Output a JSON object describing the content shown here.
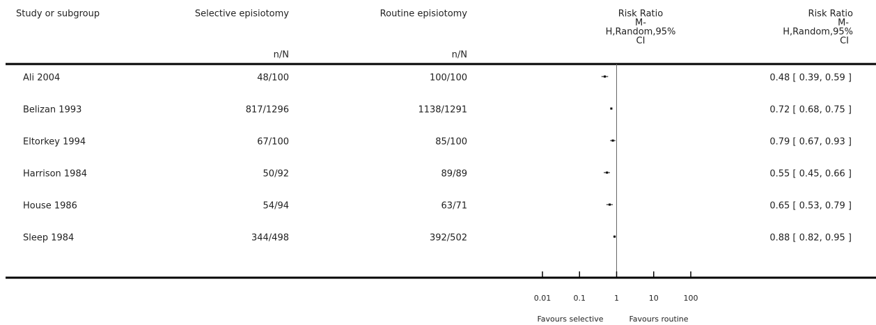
{
  "columns": {
    "study": "Study or subgroup",
    "selective": "Selective episiotomy",
    "routine": "Routine episiotomy",
    "rr_plot": [
      "Risk Ratio",
      "M-",
      "H,Random,95%",
      "CI"
    ],
    "rr_text": [
      "Risk Ratio",
      "M-",
      "H,Random,95%",
      "CI"
    ],
    "selective_unit": "n/N",
    "routine_unit": "n/N"
  },
  "rows": [
    {
      "study": "Ali 2004",
      "selective": "48/100",
      "routine": "100/100",
      "rr": 0.48,
      "ci": [
        0.39,
        0.59
      ],
      "label": "0.48 [ 0.39, 0.59 ]"
    },
    {
      "study": "Belizan 1993",
      "selective": "817/1296",
      "routine": "1138/1291",
      "rr": 0.72,
      "ci": [
        0.68,
        0.75
      ],
      "label": "0.72 [ 0.68, 0.75 ]"
    },
    {
      "study": "Eltorkey 1994",
      "selective": "67/100",
      "routine": "85/100",
      "rr": 0.79,
      "ci": [
        0.67,
        0.93
      ],
      "label": "0.79 [ 0.67, 0.93 ]"
    },
    {
      "study": "Harrison 1984",
      "selective": "50/92",
      "routine": "89/89",
      "rr": 0.55,
      "ci": [
        0.45,
        0.66
      ],
      "label": "0.55 [ 0.45, 0.66 ]"
    },
    {
      "study": "House 1986",
      "selective": "54/94",
      "routine": "63/71",
      "rr": 0.65,
      "ci": [
        0.53,
        0.79
      ],
      "label": "0.65 [ 0.53, 0.79 ]"
    },
    {
      "study": "Sleep 1984",
      "selective": "344/498",
      "routine": "392/502",
      "rr": 0.88,
      "ci": [
        0.82,
        0.95
      ],
      "label": "0.88 [ 0.82, 0.95 ]"
    }
  ],
  "axis": {
    "log_scale": true,
    "xlim": [
      0.01,
      100
    ],
    "xticks": [
      0.01,
      0.1,
      1,
      10,
      100
    ],
    "reference": 1,
    "left_label": "Favours selective",
    "right_label": "Favours routine"
  }
}
